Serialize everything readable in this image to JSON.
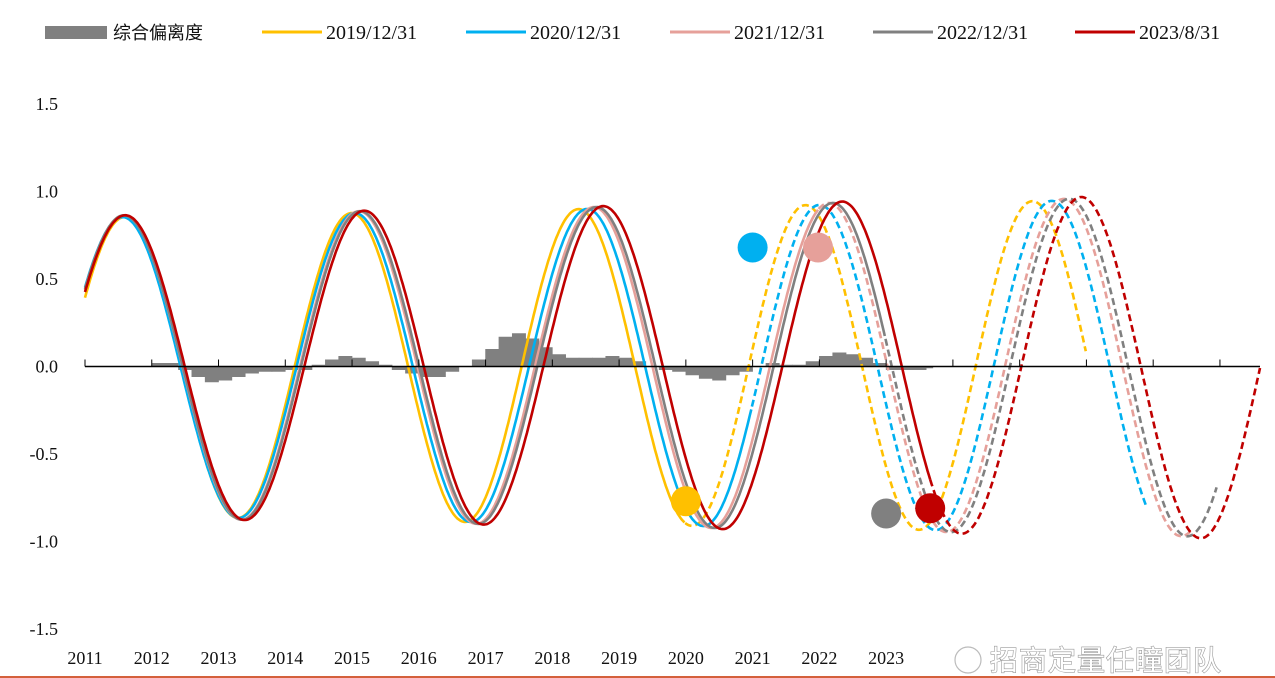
{
  "chart_data": {
    "type": "line",
    "title": "",
    "xlabel": "",
    "ylabel": "",
    "ylim": [
      -1.5,
      1.5
    ],
    "yticks": [
      "1.5",
      "1.0",
      "0.5",
      "0.0",
      "-0.5",
      "-1.0",
      "-1.5"
    ],
    "x_range": [
      2011.0,
      2028.6
    ],
    "xticks": [
      "2011",
      "2012",
      "2013",
      "2014",
      "2015",
      "2016",
      "2017",
      "2018",
      "2019",
      "2020",
      "2021",
      "2022",
      "2023"
    ],
    "legend_position": "top",
    "legend": [
      {
        "label": "综合偏离度",
        "kind": "bar",
        "color": "#808080"
      },
      {
        "label": "2019/12/31",
        "kind": "line",
        "color": "#FFC000"
      },
      {
        "label": "2020/12/31",
        "kind": "line",
        "color": "#00B0F0"
      },
      {
        "label": "2021/12/31",
        "kind": "line",
        "color": "#E6A09A"
      },
      {
        "label": "2022/12/31",
        "kind": "line",
        "color": "#808080"
      },
      {
        "label": "2023/8/31",
        "kind": "line",
        "color": "#C00000"
      }
    ],
    "composite_deviation": {
      "name": "综合偏离度",
      "x": [
        2011.9,
        2012.1,
        2012.3,
        2012.5,
        2012.7,
        2012.9,
        2013.1,
        2013.3,
        2013.5,
        2013.7,
        2013.9,
        2014.1,
        2014.3,
        2014.5,
        2014.7,
        2014.9,
        2015.1,
        2015.3,
        2015.5,
        2015.7,
        2015.9,
        2016.1,
        2016.3,
        2016.5,
        2016.7,
        2016.9,
        2017.1,
        2017.3,
        2017.5,
        2017.7,
        2017.9,
        2018.1,
        2018.3,
        2018.5,
        2018.7,
        2018.9,
        2019.1,
        2019.3,
        2019.5,
        2019.7,
        2019.9,
        2020.1,
        2020.3,
        2020.5,
        2020.7,
        2020.9,
        2021.1,
        2021.3,
        2021.5,
        2021.7,
        2021.9,
        2022.1,
        2022.3,
        2022.5,
        2022.7,
        2022.9,
        2023.1,
        2023.3,
        2023.5,
        2023.6
      ],
      "values": [
        0.0,
        0.02,
        0.02,
        -0.02,
        -0.06,
        -0.09,
        -0.08,
        -0.06,
        -0.04,
        -0.03,
        -0.03,
        -0.02,
        -0.02,
        0.01,
        0.04,
        0.06,
        0.05,
        0.03,
        0.01,
        -0.02,
        -0.04,
        -0.06,
        -0.06,
        -0.03,
        0.0,
        0.04,
        0.1,
        0.17,
        0.19,
        0.16,
        0.11,
        0.07,
        0.05,
        0.05,
        0.05,
        0.06,
        0.05,
        0.03,
        0.0,
        -0.02,
        -0.03,
        -0.05,
        -0.07,
        -0.08,
        -0.05,
        -0.03,
        0.0,
        0.02,
        0.01,
        0.01,
        0.03,
        0.06,
        0.08,
        0.07,
        0.05,
        0.02,
        -0.02,
        -0.02,
        -0.02,
        -0.01
      ]
    },
    "series": [
      {
        "name": "2019/12/31",
        "color": "#FFC000",
        "amp_start": 0.85,
        "amp_end": 0.96,
        "period": 3.4,
        "anchor_x": 2011.59,
        "data_end": 2019.99,
        "forecast_end": 2026.0,
        "marker": {
          "x": 2020.0,
          "y": -0.77
        }
      },
      {
        "name": "2020/12/31",
        "color": "#00B0F0",
        "amp_start": 0.85,
        "amp_end": 0.96,
        "period": 3.48,
        "anchor_x": 2011.56,
        "data_end": 2020.99,
        "forecast_end": 2026.9,
        "marker": {
          "x": 2021.0,
          "y": 0.68
        }
      },
      {
        "name": "2021/12/31",
        "color": "#E6A09A",
        "amp_start": 0.86,
        "amp_end": 0.97,
        "period": 3.52,
        "anchor_x": 2011.58,
        "data_end": 2021.99,
        "forecast_end": 2027.6,
        "marker": {
          "x": 2021.98,
          "y": 0.68
        }
      },
      {
        "name": "2022/12/31",
        "color": "#808080",
        "amp_start": 0.86,
        "amp_end": 0.97,
        "period": 3.54,
        "anchor_x": 2011.58,
        "data_end": 2022.99,
        "forecast_end": 2027.95,
        "marker": {
          "x": 2023.0,
          "y": -0.84
        }
      },
      {
        "name": "2023/8/31",
        "color": "#C00000",
        "amp_start": 0.86,
        "amp_end": 0.98,
        "period": 3.58,
        "anchor_x": 2011.6,
        "data_end": 2023.66,
        "forecast_end": 2028.6,
        "marker": {
          "x": 2023.66,
          "y": -0.81
        }
      }
    ]
  },
  "watermark": {
    "text": "招商定量任瞳团队"
  }
}
